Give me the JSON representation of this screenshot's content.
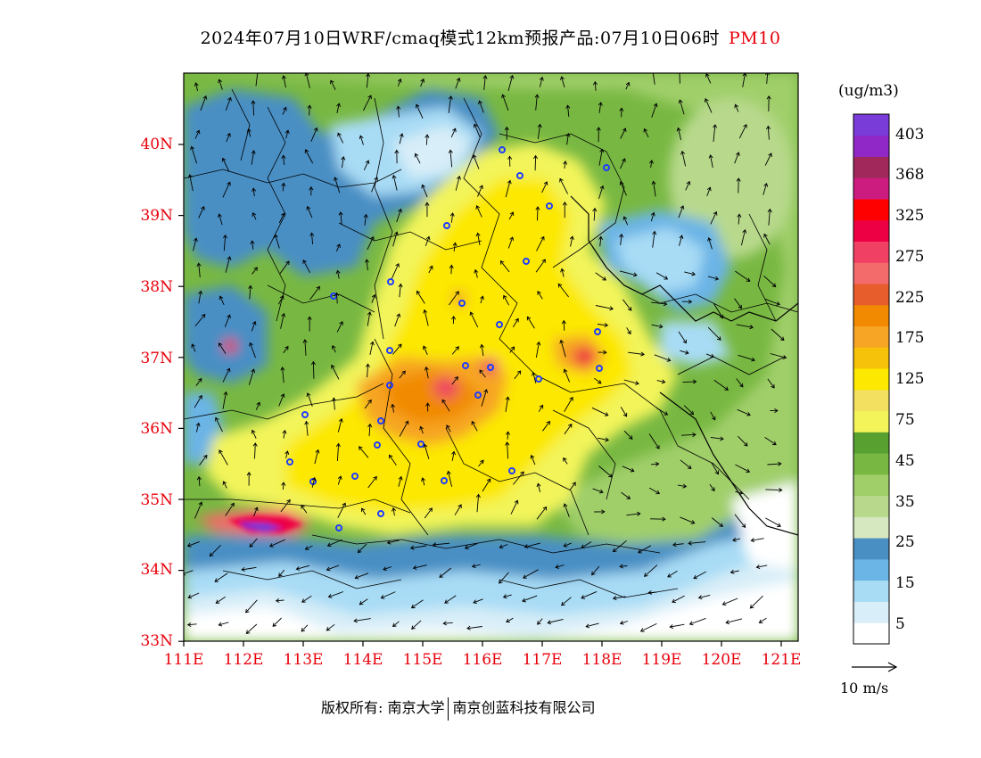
{
  "title": {
    "main": "2024年07月10日WRF/cmaq模式12km预报产品:07月10日06时",
    "variable": "PM10"
  },
  "map": {
    "lat_labels": [
      "40N",
      "39N",
      "38N",
      "37N",
      "36N",
      "35N",
      "34N",
      "33N"
    ],
    "lon_labels": [
      "111E",
      "112E",
      "113E",
      "114E",
      "115E",
      "116E",
      "117E",
      "118E",
      "119E",
      "120E",
      "121E"
    ],
    "lat_range": [
      33,
      41
    ],
    "lon_range": [
      111,
      121.3
    ]
  },
  "colorbar": {
    "unit": "(ug/m3)",
    "colors": [
      "#ffffff",
      "#d8eef8",
      "#a8dcf5",
      "#6ab4e6",
      "#4a8fc4",
      "#d6e8c0",
      "#b8d98c",
      "#a0cf6a",
      "#78b842",
      "#58a030",
      "#f2f45a",
      "#f4e060",
      "#fce800",
      "#f7c20a",
      "#f6a524",
      "#f18a00",
      "#e85d2c",
      "#f46b6b",
      "#f04064",
      "#ee0044",
      "#ff0000",
      "#cc1c80",
      "#a0285a",
      "#9028c8",
      "#7a3cd8"
    ],
    "labels": [
      "5",
      "15",
      "25",
      "35",
      "45",
      "75",
      "125",
      "175",
      "225",
      "275",
      "325",
      "368",
      "403"
    ]
  },
  "wind": {
    "reference_label": "10 m/s"
  },
  "footer": {
    "copyright": "版权所有: 南京大学",
    "company": "南京创蓝科技有限公司"
  }
}
